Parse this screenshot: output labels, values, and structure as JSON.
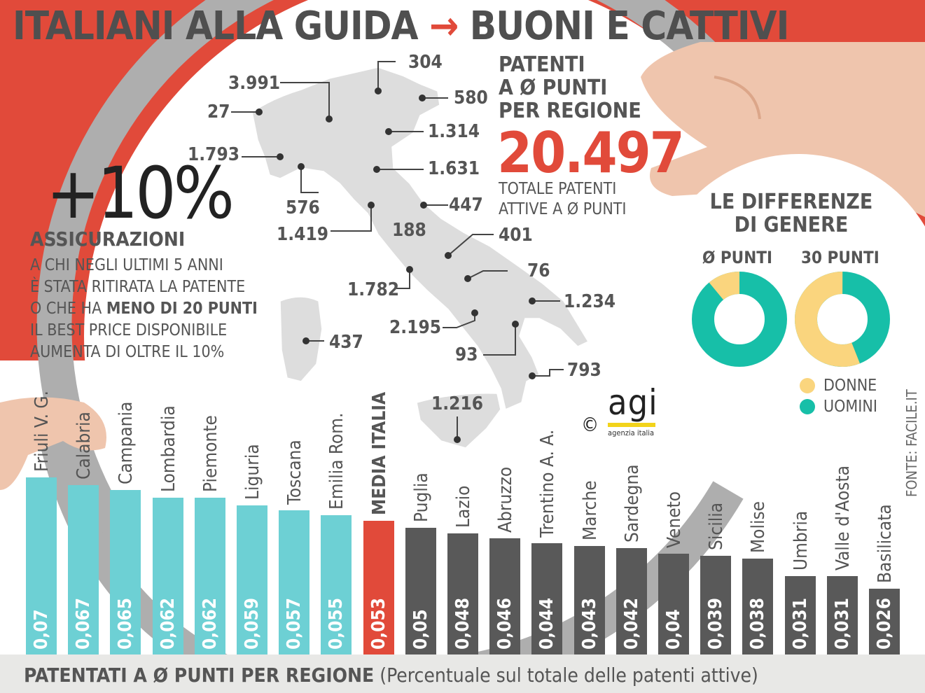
{
  "header": {
    "title_left": "ITALIANI ALLA GUIDA",
    "title_arrow": "→",
    "title_right": "BUONI E CATTIVI"
  },
  "map": {
    "labels": [
      "304",
      "3.991",
      "580",
      "27",
      "1.314",
      "1.793",
      "1.631",
      "576",
      "447",
      "1.419",
      "188",
      "401",
      "76",
      "1.782",
      "1.234",
      "2.195",
      "437",
      "93",
      "793",
      "1.216"
    ]
  },
  "patenti": {
    "heading_line1": "PATENTI",
    "heading_line2": "A Ø PUNTI",
    "heading_line3": "PER REGIONE",
    "total": "20.497",
    "caption_line1": "TOTALE PATENTI",
    "caption_line2": "ATTIVE A Ø PUNTI"
  },
  "insurance": {
    "percent": "+10%",
    "title": "ASSICURAZIONI",
    "line1": "A CHI NEGLI ULTIMI 5 ANNI",
    "line2": "È STATA RITIRATA LA PATENTE",
    "line3_prefix": "O CHE HA ",
    "line3_bold": "MENO DI 20 PUNTI",
    "line4": "IL BEST PRICE DISPONIBILE",
    "line5": "AUMENTA DI OLTRE IL 10%"
  },
  "gender": {
    "heading_line1": "LE DIFFERENZE",
    "heading_line2": "DI GENERE",
    "donut_zero_label": "Ø PUNTI",
    "donut_thirty_label": "30 PUNTI",
    "legend_women": "DONNE",
    "legend_men": "UOMINI",
    "color_women": "#fad57e",
    "color_men": "#17bfa8",
    "zero_points": {
      "donne": 0.11,
      "uomini": 0.89
    },
    "thirty_points": {
      "donne": 0.56,
      "uomini": 0.44
    }
  },
  "source": "FONTE: FACILE.IT",
  "logo": {
    "copyright": "©",
    "name": "agi",
    "subtitle": "agenzia italia"
  },
  "footer": {
    "bold": "PATENTATI A Ø PUNTI PER REGIONE",
    "normal": " (Percentuale sul totale delle patenti attive)"
  },
  "colors": {
    "red": "#e14a3a",
    "above_average": "#6dd0d4",
    "below_average": "#595959",
    "average": "#e14a3a"
  },
  "chart_data": {
    "type": "bar",
    "title": "PATENTATI A Ø PUNTI PER REGIONE",
    "categories": [
      "Friuli V. G.",
      "Calabria",
      "Campania",
      "Lombardia",
      "Piemonte",
      "Liguria",
      "Toscana",
      "Emilia Rom.",
      "MEDIA ITALIA",
      "Puglia",
      "Lazio",
      "Abruzzo",
      "Trentino A. A.",
      "Marche",
      "Sardegna",
      "Veneto",
      "Sicilia",
      "Molise",
      "Umbria",
      "Valle d'Aosta",
      "Basilicata"
    ],
    "values": [
      0.07,
      0.067,
      0.065,
      0.062,
      0.062,
      0.059,
      0.057,
      0.055,
      0.053,
      0.05,
      0.048,
      0.046,
      0.044,
      0.043,
      0.042,
      0.04,
      0.039,
      0.038,
      0.031,
      0.031,
      0.026
    ],
    "value_labels": [
      "0,07",
      "0,067",
      "0,065",
      "0,062",
      "0,062",
      "0,059",
      "0,057",
      "0,055",
      "0,053",
      "0,05",
      "0,048",
      "0,046",
      "0,044",
      "0,043",
      "0,042",
      "0,04",
      "0,039",
      "0,038",
      "0,031",
      "0,031",
      "0,026"
    ],
    "groups": [
      "above",
      "above",
      "above",
      "above",
      "above",
      "above",
      "above",
      "above",
      "average",
      "below",
      "below",
      "below",
      "below",
      "below",
      "below",
      "below",
      "below",
      "below",
      "below",
      "below",
      "below"
    ]
  }
}
